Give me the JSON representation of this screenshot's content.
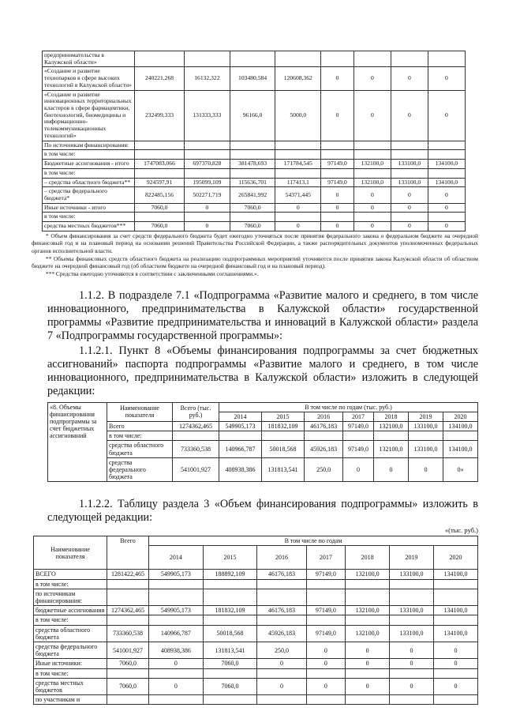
{
  "table1": {
    "rows": [
      [
        "предпринимательства в Калужской области»",
        "",
        "",
        "",
        "",
        "",
        "",
        "",
        ""
      ],
      [
        "«Создание и развитие технопарков в сфере высоких технологий в Калужской области»",
        "240221,268",
        "16132,322",
        "103480,584",
        "120608,362",
        "0",
        "0",
        "0",
        "0"
      ],
      [
        "«Создание и развитие инновационных территориальных кластеров в сфере фармацевтики, биотехнологий, биомедицины и информационно-телекоммуникационных технологий»",
        "232499,333",
        "131333,333",
        "96166,0",
        "5000,0",
        "0",
        "0",
        "0",
        "0"
      ],
      [
        "По источникам финансирования:",
        "",
        "",
        "",
        "",
        "",
        "",
        "",
        ""
      ],
      [
        "в том числе:",
        "",
        "",
        "",
        "",
        "",
        "",
        "",
        ""
      ],
      [
        "Бюджетные ассигнования - итого",
        "1747083,066",
        "697370,828",
        "381478,693",
        "171784,545",
        "97149,0",
        "132100,0",
        "133100,0",
        "134100,0"
      ],
      [
        "в том числе:",
        "",
        "",
        "",
        "",
        "",
        "",
        "",
        ""
      ],
      [
        "–  средства областного бюджета**",
        "924597,91",
        "195099,109",
        "115636,701",
        "117413,1",
        "97149,0",
        "132100,0",
        "133100,0",
        "134100,0"
      ],
      [
        "–  средства федерального бюджета*",
        "822485,156",
        "502271,719",
        "265841,992",
        "54371,445",
        "0",
        "0",
        "0",
        "0"
      ],
      [
        "Иные источники - итого",
        "7060,0",
        "0",
        "7060,0",
        "0",
        "0",
        "0",
        "0",
        "0"
      ],
      [
        "в том числе:",
        "",
        "",
        "",
        "",
        "",
        "",
        "",
        ""
      ],
      [
        "средства местных бюджетов***",
        "7060,0",
        "0",
        "7060,0",
        "0",
        "0",
        "0",
        "0",
        "0"
      ]
    ]
  },
  "footnotes": [
    "* Объем финансирования за счет средств федерального бюджета будет ежегодно уточняться после принятия федерального закона о федеральном бюджете на очередной финансовый год и на плановый период на основании решений Правительства Российской Федерации, а также распорядительных документов уполномоченных федеральных органов исполнительной власти.",
    "** Объемы финансовых средств областного бюджета на реализацию подпрограммных мероприятий уточняются после принятия закона Калужской области об областном бюджете на очередной финансовый год (об областном бюджете на очередной финансовый год и на плановый период).",
    "*** Средства ежегодно уточняются в соответствии с заключенными соглашениями.»."
  ],
  "paragraphs": {
    "p1": "1.1.2. В подразделе 7.1 «Подпрограмма «Развитие малого и среднего, в том числе инновационного, предпринимательства в Калужской области» государственной программы «Развитие предпринимательства и инноваций в Калужской области» раздела 7 «Подпрограммы государственной программы»:",
    "p2": "1.1.2.1. Пункт 8 «Объемы финансирования подпрограммы за счет бюджетных ассигнований» паспорта подпрограммы «Развитие малого и среднего, в том числе инновационного, предпринимательства в Калужской области» изложить в следующей редакции:",
    "p3": "1.1.2.2. Таблицу раздела 3 «Объем финансирования подпрограммы» изложить в следующей редакции:"
  },
  "table2": {
    "side": "«8. Объемы финансирования подпрограммы за счет бюджетных ассигнований",
    "h_name": "Наименование показателя",
    "h_total": "Всего (тыс. руб.)",
    "h_years": "В том числе по годам (тыс. руб.)",
    "years": [
      "2014",
      "2015",
      "2016",
      "2017",
      "2018",
      "2019",
      "2020"
    ],
    "rows": [
      [
        "Всего",
        "1274362,465",
        "549905,173",
        "181832,109",
        "46176,183",
        "97149,0",
        "132100,0",
        "133100,0",
        "134100,0"
      ],
      [
        "в том числе:",
        "",
        "",
        "",
        "",
        "",
        "",
        "",
        ""
      ],
      [
        "средства областного бюджета",
        "733360,538",
        "140966,787",
        "50018,568",
        "45926,183",
        "97149,0",
        "132100,0",
        "133100,0",
        "134100,0"
      ],
      [
        "средства федерального бюджета",
        "541001,927",
        "408938,386",
        "131813,541",
        "250,0",
        "0",
        "0",
        "0",
        "0»"
      ]
    ]
  },
  "unit": "«(тыс. руб.)",
  "table3": {
    "h_name": "Наименование показателя",
    "h_total": "Всего",
    "h_years": "В том числе по годам",
    "years": [
      "2014",
      "2015",
      "2016",
      "2017",
      "2018",
      "2019",
      "2020"
    ],
    "rows": [
      [
        "ВСЕГО",
        "1281422,465",
        "549905,173",
        "188892,109",
        "46176,183",
        "97149,0",
        "132100,0",
        "133100,0",
        "134100,0"
      ],
      [
        "в том числе:",
        "",
        "",
        "",
        "",
        "",
        "",
        "",
        ""
      ],
      [
        "по источникам финансирования:",
        "",
        "",
        "",
        "",
        "",
        "",
        "",
        ""
      ],
      [
        "бюджетные ассигнования",
        "1274362,465",
        "549905,173",
        "181832,109",
        "46176,183",
        "97149,0",
        "132100,0",
        "133100,0",
        "134100,0"
      ],
      [
        "в том числе:",
        "",
        "",
        "",
        "",
        "",
        "",
        "",
        ""
      ],
      [
        "средства областного бюджета",
        "733360,538",
        "140966,787",
        "50018,568",
        "45926,183",
        "97149,0",
        "132100,0",
        "133100,0",
        "134100,0"
      ],
      [
        "средства федерального бюджета",
        "541001,927",
        "408938,386",
        "131813,541",
        "250,0",
        "0",
        "0",
        "0",
        "0"
      ],
      [
        "Иные источники:",
        "7060,0",
        "0",
        "7060,0",
        "0",
        "0",
        "0",
        "0",
        "0"
      ],
      [
        "в том числе:",
        "",
        "",
        "",
        "",
        "",
        "",
        "",
        ""
      ],
      [
        "средства местных бюджетов",
        "7060,0",
        "0",
        "7060,0",
        "0",
        "0",
        "0",
        "0",
        "0"
      ],
      [
        "по участникам и",
        "",
        "",
        "",
        "",
        "",
        "",
        "",
        ""
      ]
    ]
  }
}
